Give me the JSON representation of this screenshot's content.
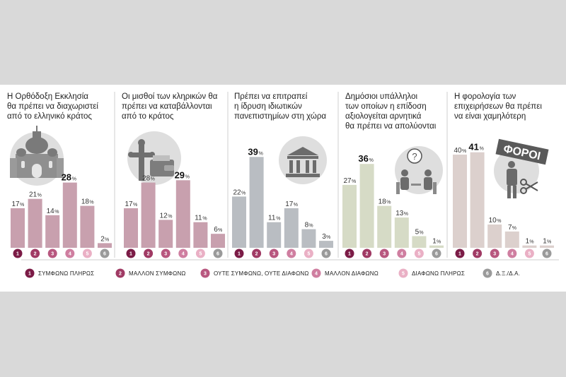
{
  "chart_data": [
    {
      "type": "bar",
      "title": "Η Ορθόδοξη Εκκλησία θα πρέπει να διαχωριστεί από το ελληνικό κράτος",
      "title_lines": [
        "Η Ορθόδοξη Εκκλησία",
        "θα πρέπει να διαχωριστεί",
        "από το ελληνικό κράτος"
      ],
      "categories": [
        "1",
        "2",
        "3",
        "4",
        "5",
        "6"
      ],
      "values": [
        17,
        21,
        14,
        28,
        18,
        2
      ],
      "max_index": 3,
      "bar_color": "#c8a0ae",
      "icon": "cathedral-icon",
      "ylim": [
        0,
        40
      ]
    },
    {
      "type": "bar",
      "title": "Οι μισθοί των κληρικών θα πρέπει να καταβάλλονται από το κράτος",
      "title_lines": [
        "Οι μισθοί των κληρικών θα",
        "πρέπει να καταβάλλονται",
        "από το κράτος"
      ],
      "categories": [
        "1",
        "2",
        "3",
        "4",
        "5",
        "6"
      ],
      "values": [
        17,
        28,
        12,
        29,
        11,
        6
      ],
      "max_index": 3,
      "bar_color": "#c8a0ae",
      "icon": "cross-wallet-icon",
      "ylim": [
        0,
        40
      ]
    },
    {
      "type": "bar",
      "title": "Πρέπει να επιτραπεί η ίδρυση ιδιωτικών πανεπιστημίων στη χώρα",
      "title_lines": [
        "Πρέπει να επιτραπεί",
        "η ίδρυση ιδιωτικών",
        "πανεπιστημίων στη χώρα"
      ],
      "categories": [
        "1",
        "2",
        "3",
        "4",
        "5",
        "6"
      ],
      "values": [
        22,
        39,
        11,
        17,
        8,
        3
      ],
      "max_index": 1,
      "bar_color": "#b9bdc2",
      "icon": "bank-icon",
      "ylim": [
        0,
        40
      ]
    },
    {
      "type": "bar",
      "title": "Δημόσιοι υπάλληλοι των οποίων η επίδοση αξιολογείται αρνητικά θα πρέπει να απολύονται",
      "title_lines": [
        "Δημόσιοι υπάλληλοι",
        "των οποίων η επίδοση",
        "αξιολογείται αρνητικά",
        "θα πρέπει να απολύονται"
      ],
      "categories": [
        "1",
        "2",
        "3",
        "4",
        "5",
        "6"
      ],
      "values": [
        27,
        36,
        18,
        13,
        5,
        1
      ],
      "max_index": 1,
      "bar_color": "#d6dbc6",
      "icon": "interview-icon",
      "ylim": [
        0,
        40
      ]
    },
    {
      "type": "bar",
      "title": "Η φορολογία των επιχειρήσεων θα πρέπει να είναι χαμηλότερη",
      "title_lines": [
        "Η φορολογία των",
        "επιχειρήσεων θα πρέπει",
        "να είναι χαμηλότερη"
      ],
      "categories": [
        "1",
        "2",
        "3",
        "4",
        "5",
        "6"
      ],
      "values": [
        40,
        41,
        10,
        7,
        1,
        1
      ],
      "max_index": 1,
      "bar_color": "#dcd0cd",
      "icon": "tax-man-icon",
      "icon_text": "ΦΟΡΟΙ",
      "ylim": [
        0,
        40
      ]
    }
  ],
  "legend": [
    {
      "num": "1",
      "label": "ΣΥΜΦΩΝΩ ΠΛΗΡΩΣ",
      "color": "#7b1b46"
    },
    {
      "num": "2",
      "label": "ΜΑΛΛΟΝ ΣΥΜΦΩΝΩ",
      "color": "#a03a64"
    },
    {
      "num": "3",
      "label": "ΟΥΤΕ ΣΥΜΦΩΝΩ, ΟΥΤΕ ΔΙΑΦΩΝΩ",
      "color": "#b8577f"
    },
    {
      "num": "4",
      "label": "ΜΑΛΛΟΝ ΔΙΑΦΩΝΩ",
      "color": "#cf7ea0"
    },
    {
      "num": "5",
      "label": "ΔΙΑΦΩΝΩ ΠΛΗΡΩΣ",
      "color": "#eab0c5"
    },
    {
      "num": "6",
      "label": "Δ.Ξ./Δ.Α.",
      "color": "#9a9a9a"
    }
  ],
  "percent_sign": "%",
  "colors": {
    "background": "#d9d9d9",
    "card": "#ffffff",
    "divider": "#cfcfcf",
    "icon_bg": "#dedede"
  }
}
